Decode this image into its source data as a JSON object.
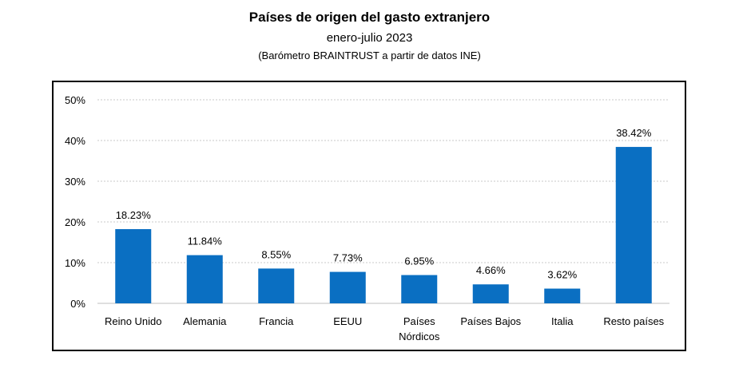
{
  "chart_data": {
    "type": "bar",
    "title": "Países de origen del gasto extranjero",
    "subtitle": "enero-julio 2023",
    "source": "(Barómetro BRAINTRUST a partir de datos INE)",
    "categories": [
      [
        "Reino Unido"
      ],
      [
        "Alemania"
      ],
      [
        "Francia"
      ],
      [
        "EEUU"
      ],
      [
        "Países",
        "Nórdicos"
      ],
      [
        "Países Bajos"
      ],
      [
        "Italia"
      ],
      [
        "Resto países"
      ]
    ],
    "values": [
      18.23,
      11.84,
      8.55,
      7.73,
      6.95,
      4.66,
      3.62,
      38.42
    ],
    "value_labels": [
      "18.23%",
      "11.84%",
      "8.55%",
      "7.73%",
      "6.95%",
      "4.66%",
      "3.62%",
      "38.42%"
    ],
    "ylim": [
      0,
      50
    ],
    "yticks": [
      0,
      10,
      20,
      30,
      40,
      50
    ],
    "ytick_labels": [
      "0%",
      "10%",
      "20%",
      "30%",
      "40%",
      "50%"
    ],
    "xlabel": "",
    "ylabel": "",
    "grid": true,
    "bar_color": "#0A6FC2",
    "grid_color": "#C8C8C8"
  }
}
